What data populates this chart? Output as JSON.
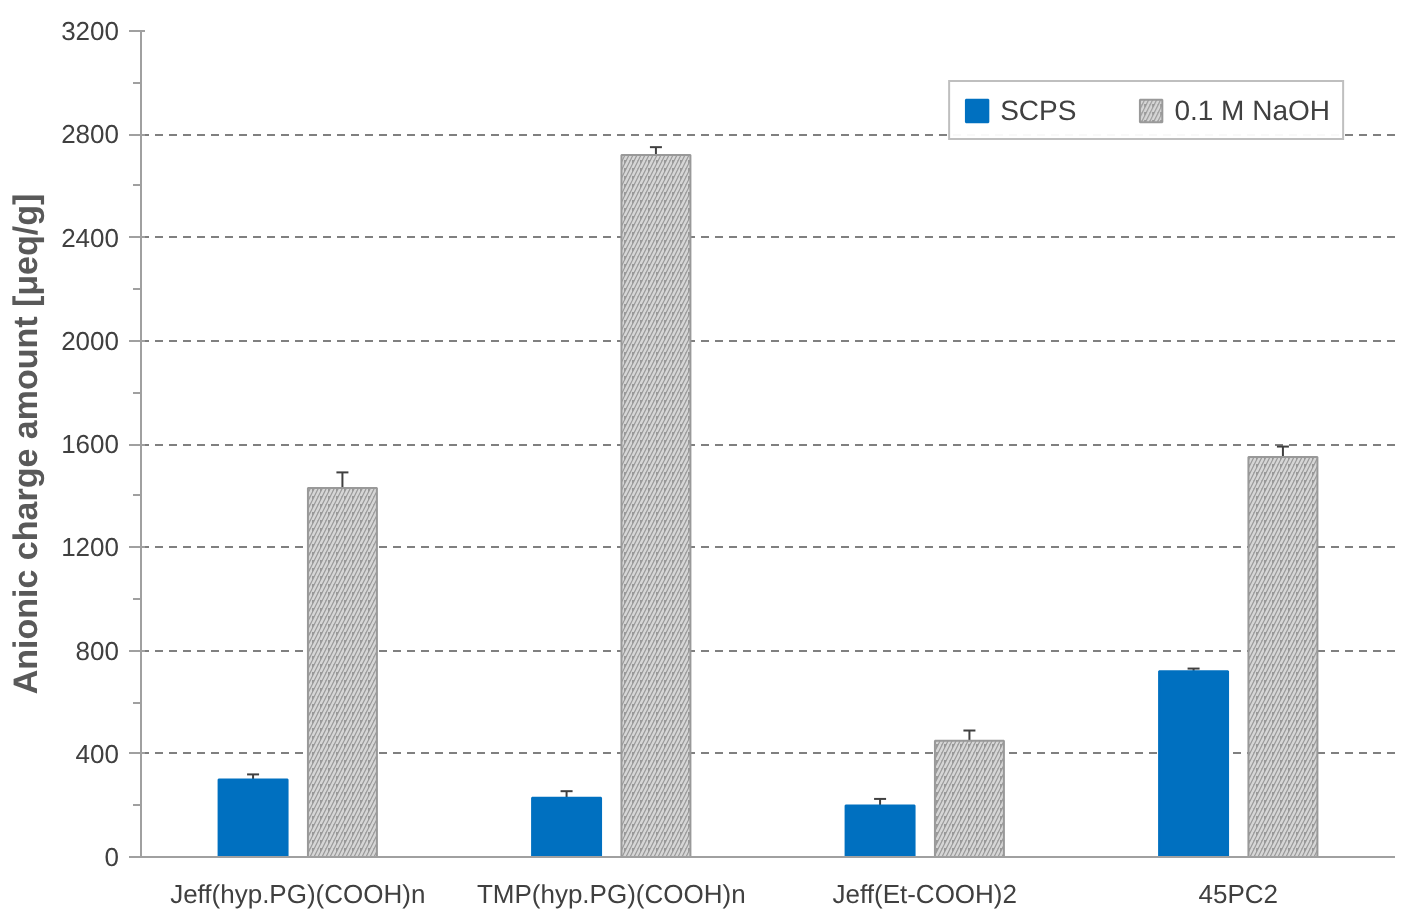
{
  "chart_data": {
    "type": "bar",
    "ylabel": "Anionic charge amount [μeq/g]",
    "categories": [
      "Jeff(hyp.PG)(COOH)n",
      "TMP(hyp.PG)(COOH)n",
      "Jeff(Et-COOH)2",
      "45PC2"
    ],
    "series": [
      {
        "name": "SCPS",
        "color": "#0070c0",
        "values": [
          300,
          230,
          200,
          720
        ],
        "errors": [
          20,
          25,
          25,
          10
        ]
      },
      {
        "name": "0.1 M NaOH",
        "color": "#999999",
        "values": [
          1430,
          2720,
          450,
          1550
        ],
        "errors": [
          60,
          30,
          40,
          40
        ]
      }
    ],
    "ylim": [
      0,
      3200
    ],
    "yticks": [
      0,
      400,
      800,
      1200,
      1600,
      2000,
      2400,
      2800,
      3200
    ],
    "grid": "y",
    "legend": "top right"
  }
}
